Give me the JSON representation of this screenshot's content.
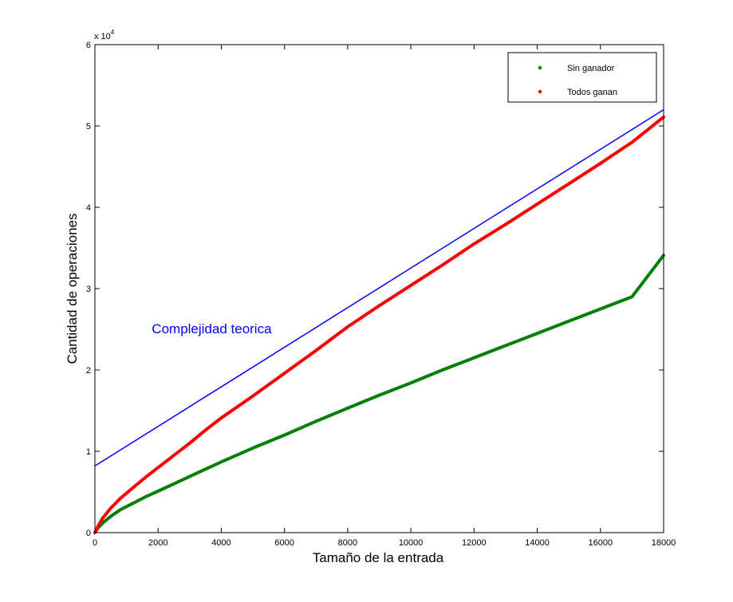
{
  "chart_data": {
    "type": "line",
    "xlabel": "Tamaño de la entrada",
    "ylabel": "Cantidad de operaciones",
    "y_exponent_label": "x 10",
    "y_exponent_power": "4",
    "y_scale": 10000,
    "xlim": [
      0,
      18000
    ],
    "ylim": [
      0,
      6
    ],
    "xticks": [
      0,
      2000,
      4000,
      6000,
      8000,
      10000,
      12000,
      14000,
      16000,
      18000
    ],
    "yticks": [
      0,
      1,
      2,
      3,
      4,
      5,
      6
    ],
    "grid": false,
    "legend_position": "top-right",
    "annotation": {
      "text": "Complejidad teorica",
      "x": 1800,
      "y": 2.45,
      "color": "#0000ff"
    },
    "series": [
      {
        "name": "Sin ganador",
        "color": "#007f00",
        "legend": true,
        "x": [
          0,
          100,
          250,
          500,
          800,
          1200,
          1600,
          2000,
          2500,
          3000,
          3500,
          4000,
          5000,
          6000,
          7000,
          8000,
          9000,
          10000,
          11000,
          12000,
          13000,
          14000,
          15000,
          16000,
          17000,
          18000
        ],
        "y": [
          0,
          0.06,
          0.12,
          0.2,
          0.28,
          0.36,
          0.44,
          0.51,
          0.6,
          0.69,
          0.78,
          0.87,
          1.04,
          1.2,
          1.37,
          1.53,
          1.69,
          1.84,
          2.0,
          2.15,
          2.3,
          2.45,
          2.6,
          2.75,
          2.9,
          3.41
        ]
      },
      {
        "name": "Todos ganan",
        "color": "#ff0000",
        "legend": true,
        "x": [
          0,
          100,
          250,
          500,
          800,
          1200,
          1600,
          2000,
          2500,
          3000,
          3500,
          4000,
          5000,
          6000,
          7000,
          8000,
          9000,
          10000,
          11000,
          12000,
          13000,
          14000,
          15000,
          16000,
          17000,
          18000
        ],
        "y": [
          0,
          0.08,
          0.18,
          0.3,
          0.42,
          0.55,
          0.68,
          0.8,
          0.95,
          1.1,
          1.26,
          1.41,
          1.68,
          1.96,
          2.24,
          2.53,
          2.79,
          3.04,
          3.29,
          3.55,
          3.79,
          4.04,
          4.29,
          4.54,
          4.8,
          5.11
        ]
      },
      {
        "name": "",
        "color": "#0000ff",
        "legend": false,
        "x": [
          0,
          18000
        ],
        "y": [
          0.82,
          5.2
        ]
      }
    ]
  }
}
